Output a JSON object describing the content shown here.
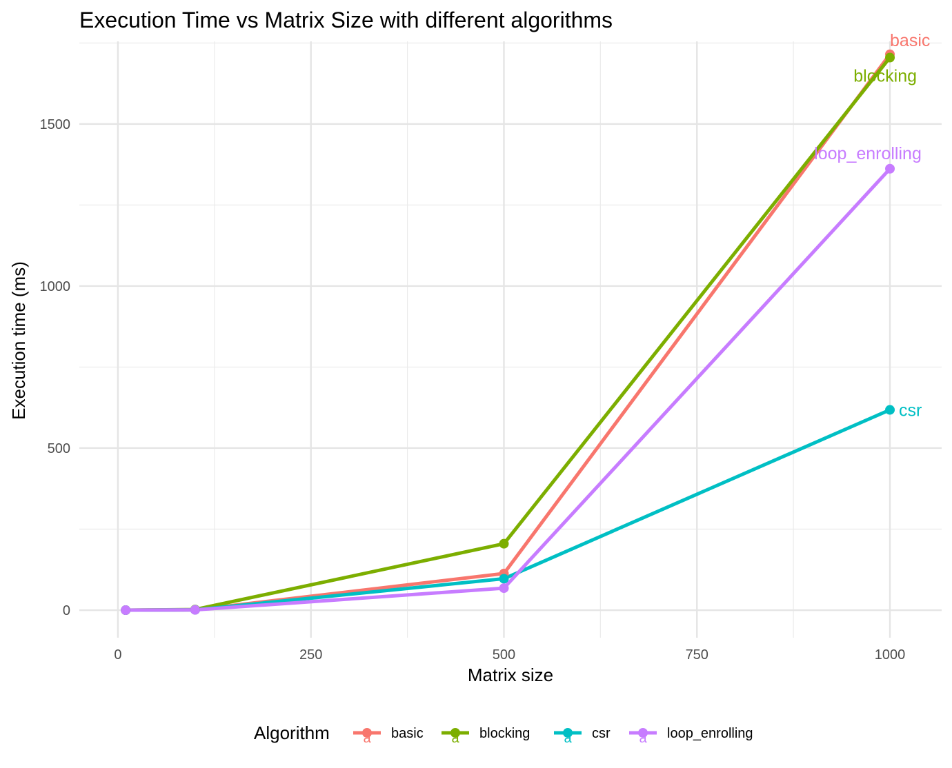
{
  "chart_data": {
    "type": "line",
    "title": "Execution Time vs Matrix Size with different algorithms",
    "xlabel": "Matrix size",
    "ylabel": "Execution time (ms)",
    "x": [
      10,
      100,
      500,
      1000
    ],
    "xlim": [
      -50,
      1067
    ],
    "ylim": [
      -85,
      1755
    ],
    "x_ticks": [
      0,
      250,
      500,
      750,
      1000
    ],
    "y_ticks": [
      0,
      500,
      1000,
      1500
    ],
    "grid": true,
    "legend": {
      "title": "Algorithm",
      "position": "bottom",
      "glyph": "a"
    },
    "series": [
      {
        "name": "basic",
        "color": "#F8766D",
        "values": [
          0,
          1,
          113,
          1715
        ]
      },
      {
        "name": "blocking",
        "color": "#7CAE00",
        "values": [
          0,
          2,
          205,
          1705
        ]
      },
      {
        "name": "csr",
        "color": "#00BFC4",
        "values": [
          0,
          1,
          97,
          618
        ]
      },
      {
        "name": "loop_enrolling",
        "color": "#C77CFF",
        "values": [
          0,
          1,
          68,
          1362
        ]
      }
    ]
  }
}
